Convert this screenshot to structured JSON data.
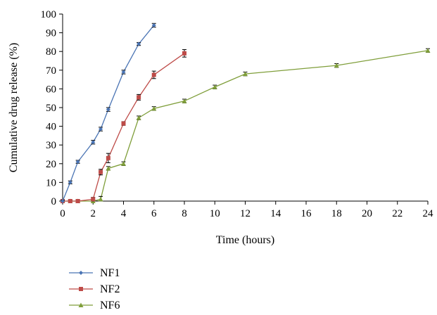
{
  "chart_data": {
    "type": "line",
    "title": "",
    "xlabel": "Time (hours)",
    "ylabel": "Cumulative drug release (%)",
    "xlim": [
      0,
      24
    ],
    "ylim": [
      0,
      100
    ],
    "xticks": [
      0,
      2,
      4,
      6,
      8,
      10,
      12,
      14,
      16,
      18,
      20,
      22,
      24
    ],
    "yticks": [
      0,
      10,
      20,
      30,
      40,
      50,
      60,
      70,
      80,
      90,
      100
    ],
    "x_tick_labels": [
      "0",
      "2",
      "4",
      "6",
      "8",
      "10",
      "12",
      "14",
      "16",
      "18",
      "20",
      "22",
      "24"
    ],
    "y_tick_labels": [
      "0",
      "10",
      "20",
      "30",
      "40",
      "50",
      "60",
      "70",
      "80",
      "90",
      "100"
    ],
    "grid": false,
    "legend_position": "bottom-left",
    "series": [
      {
        "name": "NF1",
        "color": "#4a74b4",
        "marker": "diamond",
        "x": [
          0,
          0.5,
          1,
          2,
          2.5,
          3,
          4,
          5,
          6
        ],
        "y": [
          0,
          10,
          21,
          31.5,
          38.5,
          49,
          69,
          84,
          94
        ],
        "err": [
          0.5,
          0.8,
          0.8,
          1,
          1,
          1,
          1,
          0.8,
          1
        ]
      },
      {
        "name": "NF2",
        "color": "#be4b48",
        "marker": "square",
        "x": [
          0,
          0.5,
          1,
          2,
          2.5,
          3,
          4,
          5,
          6,
          8
        ],
        "y": [
          0,
          0,
          0,
          1,
          15.5,
          23,
          41.5,
          55.5,
          67.5,
          79
        ],
        "err": [
          0.5,
          0.5,
          0.8,
          1,
          1.5,
          2.5,
          1,
          1.5,
          2,
          2
        ]
      },
      {
        "name": "NF6",
        "color": "#7f9e3a",
        "marker": "triangle",
        "x": [
          0,
          0.5,
          1,
          2,
          2.5,
          3,
          4,
          5,
          6,
          8,
          10,
          12,
          18,
          24
        ],
        "y": [
          0,
          0,
          0,
          0,
          1,
          17.5,
          20,
          44.5,
          49.5,
          53.5,
          61,
          68,
          72.5,
          80.5
        ],
        "err": [
          0.5,
          0.5,
          0.5,
          0.5,
          1.5,
          1,
          1,
          1,
          1,
          1,
          1,
          1,
          1,
          1
        ]
      }
    ]
  }
}
